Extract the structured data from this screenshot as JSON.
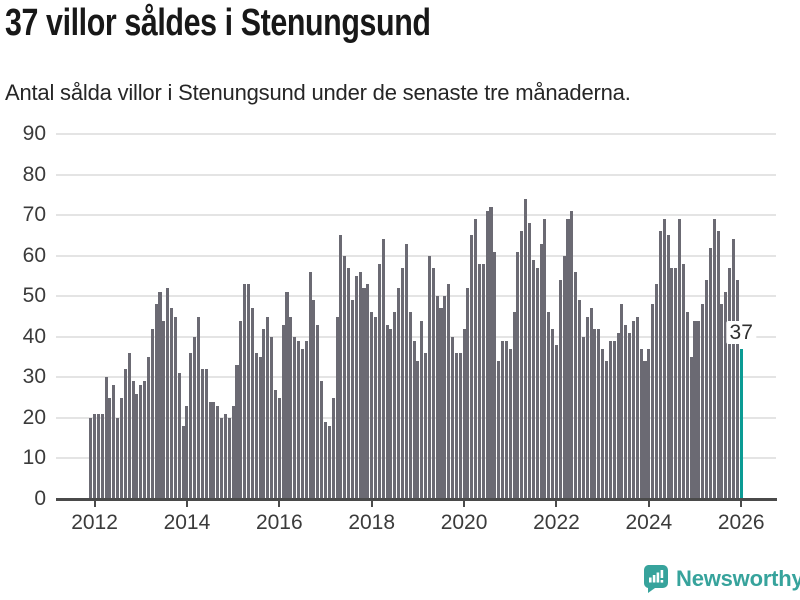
{
  "title": "37 villor såldes i Stenungsund",
  "subtitle": "Antal sålda villor i Stenungsund under de senaste tre månaderna.",
  "footer": {
    "brand": "Newsworthy",
    "icon": "newsworthy-speech-bubble-bar-chart"
  },
  "colors": {
    "bar": "#6b6a73",
    "highlight_bar": "#0b9b94",
    "grid": "#e4e4e4",
    "axis": "#4a4a4a",
    "text": "#181818",
    "brand_teal": "#37a39c"
  },
  "chart_data": {
    "type": "bar",
    "title": "37 villor såldes i Stenungsund",
    "subtitle": "Antal sålda villor i Stenungsund under de senaste tre månaderna.",
    "unit": "sålda villor per månad",
    "start_month": "2011-12",
    "end_month": "2026-01",
    "x_tick_labels": [
      "2012",
      "2014",
      "2016",
      "2018",
      "2020",
      "2022",
      "2024",
      "2026"
    ],
    "y_tick_values": [
      0,
      10,
      20,
      30,
      40,
      50,
      60,
      70,
      80,
      90
    ],
    "ylim": [
      0,
      90
    ],
    "grid": true,
    "highlight_index": 169,
    "highlight_value": 37,
    "highlight_label": "37",
    "values": [
      20,
      21,
      21,
      21,
      30,
      25,
      28,
      20,
      25,
      32,
      36,
      29,
      26,
      28,
      29,
      35,
      42,
      48,
      51,
      44,
      52,
      47,
      45,
      31,
      18,
      23,
      36,
      40,
      45,
      32,
      32,
      24,
      24,
      23,
      20,
      21,
      20,
      23,
      33,
      44,
      53,
      53,
      47,
      36,
      35,
      42,
      45,
      40,
      27,
      25,
      43,
      51,
      45,
      40,
      39,
      37,
      39,
      56,
      49,
      43,
      29,
      19,
      18,
      25,
      45,
      65,
      60,
      57,
      49,
      55,
      56,
      52,
      53,
      46,
      45,
      58,
      64,
      43,
      42,
      46,
      52,
      57,
      63,
      46,
      39,
      34,
      44,
      36,
      60,
      57,
      50,
      47,
      50,
      53,
      40,
      36,
      36,
      42,
      52,
      65,
      69,
      58,
      58,
      71,
      72,
      61,
      34,
      39,
      39,
      37,
      46,
      61,
      66,
      74,
      68,
      59,
      57,
      63,
      69,
      46,
      42,
      38,
      54,
      60,
      69,
      71,
      56,
      49,
      40,
      45,
      47,
      42,
      42,
      37,
      34,
      39,
      39,
      41,
      48,
      43,
      41,
      44,
      45,
      37,
      34,
      37,
      48,
      53,
      66,
      69,
      65,
      57,
      57,
      69,
      58,
      46,
      35,
      44,
      44,
      48,
      54,
      62,
      69,
      66,
      48,
      51,
      57,
      64,
      54,
      37
    ]
  }
}
